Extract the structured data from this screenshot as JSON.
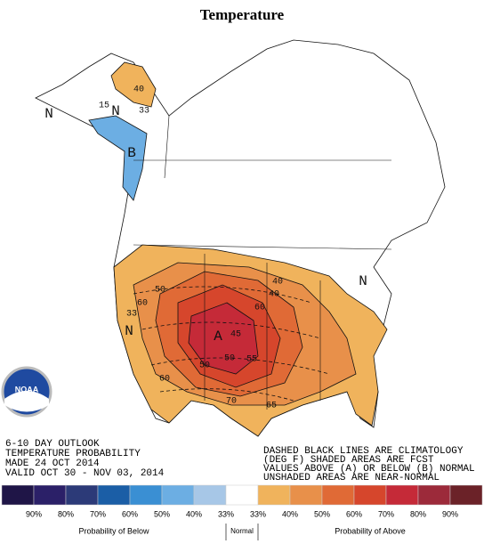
{
  "header": {
    "title": "Temperature"
  },
  "map": {
    "labels": [
      "N",
      "N",
      "40",
      "33",
      "15",
      "B",
      "N",
      "A",
      "40",
      "50",
      "60",
      "70",
      "45",
      "50",
      "55",
      "65",
      "60",
      "33",
      "N",
      "40",
      "50",
      "60"
    ]
  },
  "outlook": {
    "lines": [
      "6-10 DAY OUTLOOK",
      "TEMPERATURE PROBABILITY",
      "MADE  24 OCT 2014",
      "VALID  OCT 30 - NOV 03, 2014"
    ]
  },
  "notes": {
    "lines": [
      "DASHED BLACK LINES ARE CLIMATOLOGY",
      "(DEG F) SHADED AREAS ARE FCST",
      "VALUES ABOVE (A) OR BELOW (B) NORMAL",
      "UNSHADED AREAS ARE NEAR-NORMAL"
    ]
  },
  "logo": {
    "text": "NOAA"
  },
  "legend": {
    "colors": [
      "#1f1547",
      "#2b2068",
      "#2c3a78",
      "#1b5ea6",
      "#3a8fd3",
      "#6caee3",
      "#a7c7e7",
      "#ffffff",
      "#f0b35c",
      "#e8904a",
      "#e06a36",
      "#d6462c",
      "#c52a38",
      "#9c2a3a",
      "#6b2228"
    ],
    "labels": [
      "90%",
      "80%",
      "70%",
      "60%",
      "50%",
      "40%",
      "33%",
      "33%",
      "40%",
      "50%",
      "60%",
      "70%",
      "80%",
      "90%"
    ],
    "captions": [
      "Probability of Below",
      "Normal",
      "Probability of Above"
    ]
  }
}
